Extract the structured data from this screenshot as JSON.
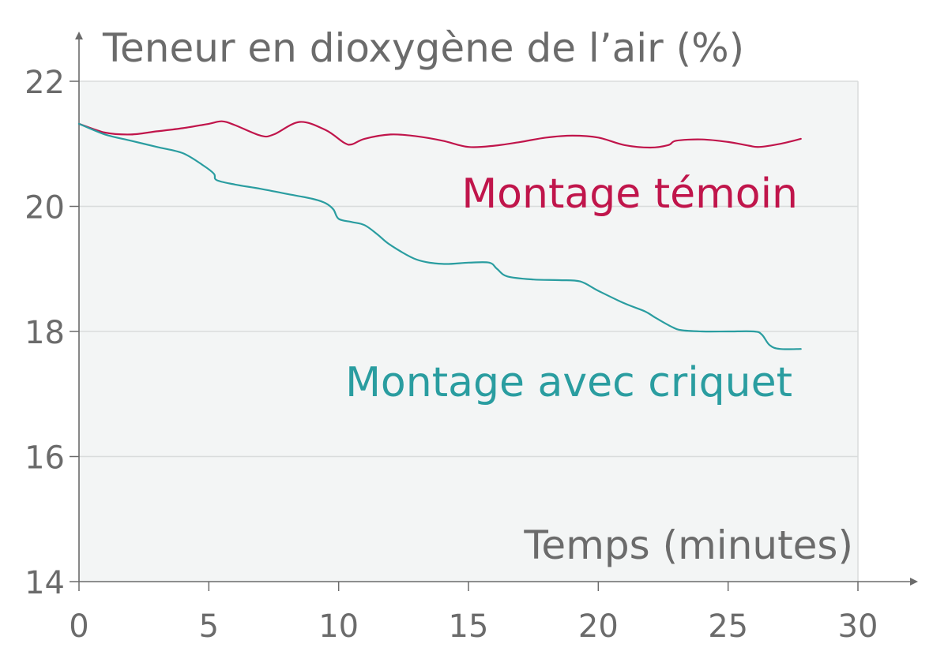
{
  "chart_data": {
    "type": "line",
    "ylabel": "Teneur en dioxygène de l’air (%)",
    "xlabel": "Temps (minutes)",
    "xlim": [
      0,
      30
    ],
    "ylim": [
      14,
      22
    ],
    "xticks": [
      "0",
      "5",
      "10",
      "15",
      "20",
      "25",
      "30"
    ],
    "yticks": [
      "14",
      "16",
      "18",
      "20",
      "22"
    ],
    "grid": true,
    "colors": {
      "montage_temoin": "#c0154b",
      "montage_criquet": "#2a9da0",
      "plot_background": "#f3f5f5",
      "grid": "#d9dcdc",
      "axis": "#6b6b6b"
    },
    "series": [
      {
        "name": "Montage témoin",
        "x": [
          0,
          1,
          2,
          3,
          4,
          5,
          5.5,
          6,
          7,
          7.5,
          8.5,
          9.5,
          10.2,
          10.5,
          11,
          12,
          13,
          14,
          15,
          16,
          17,
          18,
          19,
          20,
          21,
          22,
          22.7,
          23,
          24,
          25,
          25.8,
          26.2,
          27,
          27.8
        ],
        "y": [
          21.32,
          21.18,
          21.15,
          21.2,
          21.25,
          21.32,
          21.36,
          21.3,
          21.13,
          21.15,
          21.35,
          21.22,
          21.02,
          20.99,
          21.08,
          21.15,
          21.12,
          21.05,
          20.95,
          20.97,
          21.03,
          21.1,
          21.13,
          21.1,
          20.98,
          20.94,
          20.98,
          21.05,
          21.07,
          21.03,
          20.97,
          20.95,
          21.0,
          21.08
        ]
      },
      {
        "name": "Montage avec criquet",
        "x": [
          0,
          1,
          2,
          3,
          4,
          4.8,
          5.2,
          5.3,
          6,
          7,
          8,
          9,
          9.5,
          9.8,
          10,
          10.5,
          11,
          11.5,
          12,
          13,
          14,
          15,
          15.8,
          16.1,
          16.5,
          17.5,
          18.5,
          19.3,
          20,
          21,
          21.8,
          22.2,
          22.8,
          23.2,
          24,
          25,
          26,
          26.3,
          26.6,
          27,
          27.8
        ],
        "y": [
          21.32,
          21.15,
          21.05,
          20.95,
          20.85,
          20.65,
          20.52,
          20.42,
          20.35,
          20.28,
          20.2,
          20.12,
          20.05,
          19.95,
          19.8,
          19.75,
          19.7,
          19.55,
          19.38,
          19.15,
          19.08,
          19.1,
          19.1,
          19.0,
          18.88,
          18.83,
          18.82,
          18.8,
          18.65,
          18.45,
          18.32,
          18.22,
          18.08,
          18.02,
          18.0,
          18.0,
          18.0,
          17.95,
          17.78,
          17.72,
          17.72
        ]
      }
    ]
  }
}
